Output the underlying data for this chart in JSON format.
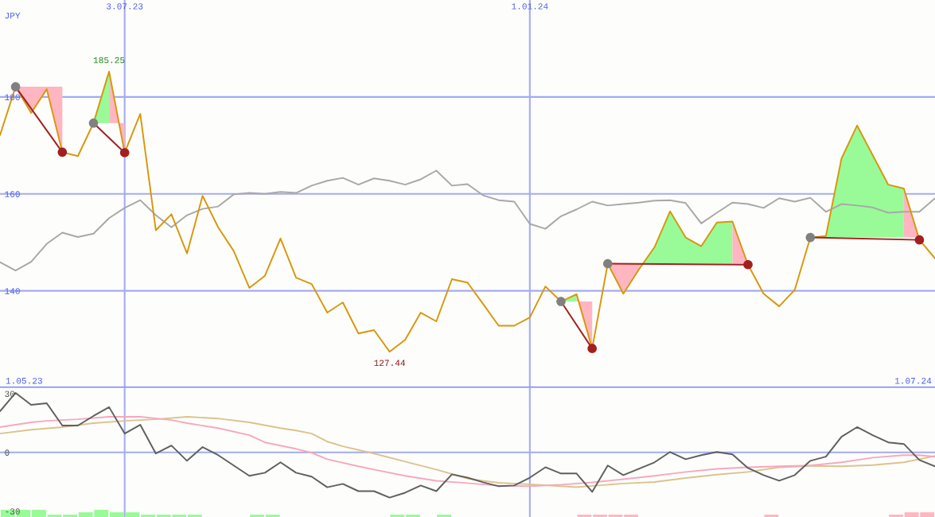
{
  "chart_data": [
    {
      "type": "line",
      "ylabel": "JPY",
      "annotations": [
        {
          "text": "185.25",
          "x": "2023-06-26",
          "y": 185.25
        },
        {
          "text": "127.44",
          "x": "2023-10-30",
          "y": 127.44
        },
        "1.05.23",
        "1.07.24"
      ],
      "xlim": [
        "2023-05-08",
        "2024-07-01"
      ],
      "xticks": [
        {
          "value": "2023-07-03",
          "label": "3.07.23"
        },
        {
          "value": "2024-01-01",
          "label": "1.01.24"
        }
      ],
      "ylim": [
        120,
        200
      ],
      "yticks": [
        140,
        160,
        180
      ],
      "grid": true,
      "x": [
        "2023-05-08",
        "2023-05-15",
        "2023-05-22",
        "2023-05-29",
        "2023-06-05",
        "2023-06-12",
        "2023-06-19",
        "2023-06-26",
        "2023-07-03",
        "2023-07-10",
        "2023-07-17",
        "2023-07-24",
        "2023-07-31",
        "2023-08-07",
        "2023-08-14",
        "2023-08-21",
        "2023-08-28",
        "2023-09-04",
        "2023-09-11",
        "2023-09-18",
        "2023-09-25",
        "2023-10-02",
        "2023-10-09",
        "2023-10-16",
        "2023-10-23",
        "2023-10-30",
        "2023-11-06",
        "2023-11-13",
        "2023-11-20",
        "2023-11-27",
        "2023-12-04",
        "2023-12-11",
        "2023-12-18",
        "2023-12-25",
        "2024-01-01",
        "2024-01-08",
        "2024-01-15",
        "2024-01-22",
        "2024-01-29",
        "2024-02-05",
        "2024-02-12",
        "2024-02-19",
        "2024-02-26",
        "2024-03-04",
        "2024-03-11",
        "2024-03-18",
        "2024-03-25",
        "2024-04-01",
        "2024-04-08",
        "2024-04-15",
        "2024-04-22",
        "2024-04-29",
        "2024-05-06",
        "2024-05-13",
        "2024-05-20",
        "2024-05-27",
        "2024-06-03",
        "2024-06-10",
        "2024-06-17",
        "2024-06-24",
        "2024-07-01"
      ],
      "series": [
        {
          "color": "#a8a8a8",
          "values": [
            145.9,
            144.2,
            146.0,
            149.7,
            152.0,
            151.1,
            151.8,
            155.0,
            157.1,
            158.7,
            155.6,
            153.1,
            155.6,
            156.9,
            157.4,
            159.9,
            160.2,
            160.0,
            160.4,
            160.2,
            161.7,
            162.7,
            163.3,
            161.9,
            163.2,
            162.7,
            161.9,
            163.0,
            164.8,
            161.7,
            162.0,
            159.7,
            158.7,
            158.4,
            153.8,
            152.8,
            155.4,
            156.8,
            158.4,
            157.6,
            157.9,
            158.2,
            158.6,
            158.7,
            158.1,
            153.9,
            156.1,
            158.2,
            157.9,
            157.1,
            159.1,
            158.4,
            159.2,
            156.3,
            157.9,
            157.6,
            157.2,
            156.1,
            156.3,
            156.3,
            159.1
          ]
        },
        {
          "color": "#ffb6c1",
          "x": [
            "2023-05-15",
            "2023-05-22",
            "2023-05-29",
            "2023-06-05"
          ],
          "values": [
            null,
            null,
            null,
            null
          ],
          "lower": [
            182.1,
            182.1,
            182.1,
            182.1
          ],
          "upper": [
            182.1,
            176.7,
            181.6,
            168.6
          ]
        },
        {
          "color": "#98fb98",
          "x": [
            "2023-06-19",
            "2023-06-26"
          ],
          "values": [
            null,
            null
          ],
          "lower": [
            174.6,
            174.6
          ],
          "upper": [
            174.6,
            185.25
          ]
        },
        {
          "color": "#ffb6c1",
          "x": [
            "2023-06-26",
            "2023-07-03"
          ],
          "values": [
            null,
            null
          ],
          "lower": [
            174.6,
            174.6
          ],
          "upper": [
            185.25,
            168.5
          ]
        },
        {
          "color": "#98fb98",
          "x": [
            "2024-01-15",
            "2024-01-22"
          ],
          "values": [
            null,
            null
          ],
          "lower": [
            137.8,
            137.8
          ],
          "upper": [
            137.8,
            139.3
          ]
        },
        {
          "color": "#ffb6c1",
          "x": [
            "2024-01-22",
            "2024-01-29"
          ],
          "values": [
            null,
            null
          ],
          "lower": [
            137.8,
            137.8
          ],
          "upper": [
            139.3,
            128.1
          ]
        },
        {
          "color": "#ffb6c1",
          "x": [
            "2024-02-05",
            "2024-02-12",
            "2024-02-19"
          ],
          "values": [
            null,
            null,
            null
          ],
          "lower": [
            145.6,
            145.6,
            145.6
          ],
          "upper": [
            145.6,
            139.4,
            144.4
          ]
        },
        {
          "color": "#98fb98",
          "x": [
            "2024-02-19",
            "2024-02-26",
            "2024-03-04",
            "2024-03-11",
            "2024-03-18",
            "2024-03-25",
            "2024-04-01"
          ],
          "values": [
            null,
            null,
            null,
            null,
            null,
            null,
            null
          ],
          "lower": [
            145.6,
            145.6,
            145.6,
            145.6,
            145.6,
            145.6,
            145.6
          ],
          "upper": [
            144.4,
            149.0,
            156.4,
            151.0,
            149.2,
            154.1,
            154.3
          ]
        },
        {
          "color": "#ffb6c1",
          "x": [
            "2024-04-01",
            "2024-04-08"
          ],
          "values": [
            null,
            null
          ],
          "lower": [
            145.6,
            145.6
          ],
          "upper": [
            154.3,
            145.4
          ]
        },
        {
          "color": "#98fb98",
          "x": [
            "2024-05-06",
            "2024-05-13",
            "2024-05-20",
            "2024-05-27",
            "2024-06-03",
            "2024-06-10",
            "2024-06-17"
          ],
          "values": [
            null,
            null,
            null,
            null,
            null,
            null,
            null
          ],
          "lower": [
            151.0,
            151.0,
            151.0,
            151.0,
            151.0,
            151.0,
            151.0
          ],
          "upper": [
            151.0,
            151.3,
            167.3,
            174.1,
            168.0,
            161.9,
            161.1
          ]
        },
        {
          "color": "#ffb6c1",
          "x": [
            "2024-06-17",
            "2024-06-24"
          ],
          "values": [
            null,
            null
          ],
          "lower": [
            151.0,
            151.0
          ],
          "upper": [
            161.1,
            150.5
          ]
        },
        {
          "color": "#d9960c",
          "values": [
            172.1,
            182.1,
            176.7,
            181.6,
            168.6,
            167.8,
            174.6,
            185.25,
            168.5,
            176.5,
            152.5,
            155.8,
            147.7,
            159.6,
            153.1,
            148.2,
            140.6,
            143.1,
            150.8,
            142.7,
            141.4,
            135.5,
            137.6,
            131.2,
            131.9,
            127.44,
            129.9,
            135.5,
            133.7,
            142.4,
            141.7,
            137.3,
            132.8,
            132.8,
            134.5,
            140.9,
            137.8,
            139.3,
            128.1,
            145.6,
            139.4,
            144.4,
            149.0,
            156.4,
            151.0,
            149.2,
            154.1,
            154.3,
            145.4,
            139.4,
            136.8,
            140.2,
            151.0,
            151.3,
            167.3,
            174.1,
            168.0,
            161.9,
            161.1,
            150.5,
            146.7
          ]
        },
        {
          "color": "#a31f1f",
          "x": [
            "2023-05-15",
            "2023-06-05"
          ],
          "values": [
            182.1,
            168.6
          ]
        },
        {
          "color": "#a31f1f",
          "x": [
            "2023-06-19",
            "2023-07-03"
          ],
          "values": [
            174.6,
            168.5
          ]
        },
        {
          "color": "#a31f1f",
          "x": [
            "2024-01-15",
            "2024-01-29"
          ],
          "values": [
            137.8,
            128.1
          ]
        },
        {
          "color": "#a31f1f",
          "x": [
            "2024-02-05",
            "2024-04-08"
          ],
          "values": [
            145.6,
            145.4
          ]
        },
        {
          "color": "#a31f1f",
          "x": [
            "2024-05-06",
            "2024-06-24"
          ],
          "values": [
            151.0,
            150.5
          ]
        },
        {
          "type": "scatter",
          "marker": "circle",
          "color": "#808080",
          "x": [
            "2023-05-15",
            "2023-06-19",
            "2024-01-15",
            "2024-02-05",
            "2024-05-06"
          ],
          "values": [
            182.1,
            174.6,
            137.8,
            145.6,
            151.0
          ]
        },
        {
          "type": "scatter",
          "marker": "circle",
          "color": "#a31f1f",
          "x": [
            "2023-06-05",
            "2023-07-03",
            "2024-01-29",
            "2024-04-08",
            "2024-06-24"
          ],
          "values": [
            168.6,
            168.5,
            128.1,
            145.4,
            150.5
          ]
        }
      ]
    },
    {
      "type": "line",
      "tick_labels": "y",
      "xlim": [
        "2023-05-08",
        "2024-07-01"
      ],
      "xticks": [
        {
          "value": "2023-07-03",
          "label": null
        },
        {
          "value": "2024-01-01",
          "label": null
        }
      ],
      "ylim": [
        -33,
        33
      ],
      "yticks": [
        30,
        0,
        -30
      ],
      "grid": "x",
      "ref_lines": [
        {
          "axis": "y",
          "value": 0,
          "color": "#a3abf3"
        }
      ],
      "x": [
        "2023-05-08",
        "2023-05-15",
        "2023-05-22",
        "2023-05-29",
        "2023-06-05",
        "2023-06-12",
        "2023-06-19",
        "2023-06-26",
        "2023-07-03",
        "2023-07-10",
        "2023-07-17",
        "2023-07-24",
        "2023-07-31",
        "2023-08-07",
        "2023-08-14",
        "2023-08-21",
        "2023-08-28",
        "2023-09-04",
        "2023-09-11",
        "2023-09-18",
        "2023-09-25",
        "2023-10-02",
        "2023-10-09",
        "2023-10-16",
        "2023-10-23",
        "2023-10-30",
        "2023-11-06",
        "2023-11-13",
        "2023-11-20",
        "2023-11-27",
        "2023-12-04",
        "2023-12-11",
        "2023-12-18",
        "2023-12-25",
        "2024-01-01",
        "2024-01-08",
        "2024-01-15",
        "2024-01-22",
        "2024-01-29",
        "2024-02-05",
        "2024-02-12",
        "2024-02-19",
        "2024-02-26",
        "2024-03-04",
        "2024-03-11",
        "2024-03-18",
        "2024-03-25",
        "2024-04-01",
        "2024-04-08",
        "2024-04-15",
        "2024-04-22",
        "2024-04-29",
        "2024-05-06",
        "2024-05-13",
        "2024-05-20",
        "2024-05-27",
        "2024-06-03",
        "2024-06-10",
        "2024-06-17",
        "2024-06-24",
        "2024-07-01"
      ],
      "series": [
        {
          "type": "bar",
          "color": "#98fb98",
          "x": [
            "2023-05-11T12:00",
            "2023-05-18T12:00",
            "2023-05-25T12:00",
            "2023-06-01T12:00",
            "2023-06-08T12:00",
            "2023-06-15T12:00",
            "2023-06-22T12:00",
            "2023-06-29T12:00",
            "2023-07-06T12:00",
            "2023-07-13T12:00",
            "2023-07-20T12:00",
            "2023-07-27T12:00",
            "2023-08-03T12:00",
            "2023-08-31T12:00",
            "2023-09-07T12:00",
            "2023-11-02T12:00",
            "2023-11-09T12:00",
            "2023-11-23T12:00"
          ],
          "values": [
            3.7,
            3.7,
            3.7,
            1.2,
            1.2,
            2.4,
            3.7,
            2.4,
            2.4,
            1.2,
            1.2,
            1.2,
            1.2,
            1.2,
            1.2,
            1.2,
            1.2,
            1.2
          ],
          "base": [
            -33,
            -33,
            -33,
            -33,
            -33,
            -33,
            -33,
            -33,
            -33,
            -33,
            -33,
            -33,
            -33,
            -33,
            -33,
            -33,
            -33,
            -33
          ]
        },
        {
          "type": "bar",
          "color": "#ffb6c1",
          "x": [
            "2024-01-25T12:00",
            "2024-02-01T12:00",
            "2024-02-08T12:00",
            "2024-02-15T12:00",
            "2024-04-18T12:00",
            "2024-06-13T12:00",
            "2024-06-20T12:00",
            "2024-06-27T12:00"
          ],
          "values": [
            1.2,
            1.2,
            1.2,
            1.2,
            1.2,
            1.2,
            2.4,
            2.4
          ],
          "base": [
            -33,
            -33,
            -33,
            -33,
            -33,
            -33,
            -33,
            -33
          ]
        },
        {
          "color": "#dcc28e",
          "x": [
            "2023-05-08",
            "2023-05-22",
            "2023-06-05",
            "2023-06-19",
            "2023-07-03",
            "2023-07-17",
            "2023-07-31",
            "2023-08-14",
            "2023-08-28",
            "2023-09-11",
            "2023-09-18",
            "2023-09-25",
            "2023-10-02",
            "2023-10-09",
            "2023-10-23",
            "2023-11-06",
            "2023-11-20",
            "2023-12-04",
            "2023-12-11",
            "2023-12-18",
            "2024-01-01",
            "2024-01-15",
            "2024-01-22",
            "2024-01-29",
            "2024-02-12",
            "2024-02-26",
            "2024-03-11",
            "2024-03-25",
            "2024-04-08",
            "2024-04-22",
            "2024-05-06",
            "2024-05-20",
            "2024-06-03",
            "2024-06-17",
            "2024-06-24",
            "2024-07-01"
          ],
          "values": [
            9.6,
            11.6,
            12.9,
            14.9,
            16.1,
            16.9,
            18.2,
            17.3,
            15.3,
            12.4,
            11.2,
            9.6,
            5.5,
            3.1,
            -0.6,
            -4.7,
            -8.8,
            -13.3,
            -14.5,
            -15.5,
            -16.3,
            -17.3,
            -17.8,
            -17.1,
            -15.9,
            -15.1,
            -13.1,
            -11.4,
            -10.0,
            -7.6,
            -6.9,
            -7.1,
            -6.5,
            -5.1,
            -3.5,
            -1.8
          ]
        },
        {
          "color": "#f7a8bd",
          "x": [
            "2023-05-08",
            "2023-05-22",
            "2023-05-29",
            "2023-06-12",
            "2023-06-26",
            "2023-07-10",
            "2023-07-24",
            "2023-07-31",
            "2023-08-14",
            "2023-08-28",
            "2023-09-04",
            "2023-09-18",
            "2023-09-25",
            "2023-10-02",
            "2023-10-16",
            "2023-10-23",
            "2023-11-06",
            "2023-11-20",
            "2023-12-04",
            "2023-12-18",
            "2024-01-01",
            "2024-01-15",
            "2024-01-29",
            "2024-02-12",
            "2024-02-26",
            "2024-03-11",
            "2024-03-25",
            "2024-04-08",
            "2024-04-22",
            "2024-05-06",
            "2024-05-20",
            "2024-06-03",
            "2024-06-17",
            "2024-06-24",
            "2024-07-01"
          ],
          "values": [
            12.9,
            15.3,
            16.1,
            16.9,
            18.2,
            18.2,
            16.5,
            14.9,
            12.4,
            8.8,
            5.1,
            1.8,
            -0.2,
            -3.5,
            -7.1,
            -8.8,
            -12.0,
            -14.5,
            -15.7,
            -17.0,
            -17.3,
            -16.5,
            -15.3,
            -13.7,
            -12.0,
            -10.0,
            -8.4,
            -7.6,
            -7.1,
            -6.7,
            -5.1,
            -2.7,
            -1.4,
            -1.4,
            -2.2
          ]
        },
        {
          "color": "#5f5f5f",
          "values": [
            21.0,
            30.4,
            24.3,
            25.1,
            13.7,
            13.7,
            18.6,
            23.1,
            9.6,
            14.1,
            -0.6,
            3.5,
            -4.3,
            2.7,
            -1.4,
            -6.7,
            -12.0,
            -10.4,
            -5.1,
            -10.4,
            -12.4,
            -17.8,
            -16.1,
            -19.8,
            -19.8,
            -23.1,
            -20.6,
            -16.9,
            -19.8,
            -11.2,
            -12.9,
            -15.3,
            -17.3,
            -16.9,
            -12.9,
            -7.6,
            -10.8,
            -10.8,
            -20.2,
            -6.7,
            -11.6,
            -8.4,
            -5.1,
            0.2,
            -3.5,
            -1.4,
            0.2,
            -1.0,
            -8.0,
            -11.6,
            -14.5,
            -11.6,
            -4.3,
            -2.2,
            8.0,
            12.9,
            8.8,
            5.1,
            4.3,
            -3.9,
            -7.1
          ]
        }
      ]
    }
  ]
}
